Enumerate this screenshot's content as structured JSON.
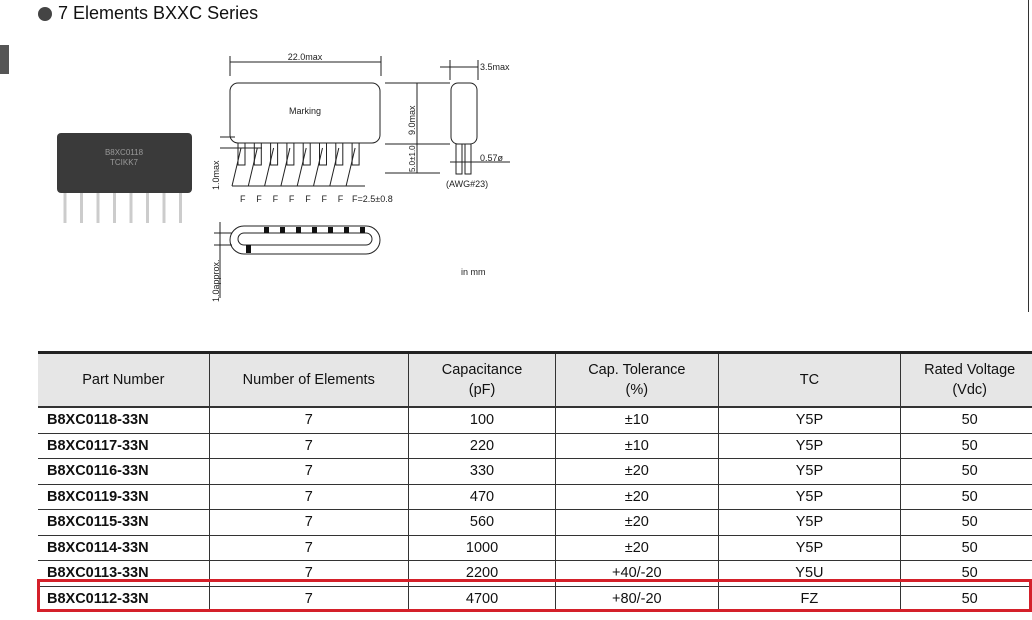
{
  "heading": "7 Elements BXXC Series",
  "diagram": {
    "width_label": "22.0max",
    "depth_label": "3.5max",
    "marking_label": "Marking",
    "height_label": "9.0max",
    "lead_length_label": "5.0±1.0",
    "lead_diameter_label": "0.57ø",
    "awg_label": "(AWG#23)",
    "lead_offset_label": "1.0max",
    "pitch_letter": "F",
    "pitch_label": "F=2.5±0.8",
    "bottom_label": "1.0approx.",
    "unit_label": "in mm",
    "photo_marking": [
      "B8XC0118",
      "TCIKK7"
    ]
  },
  "table": {
    "headers": [
      [
        "Part Number",
        ""
      ],
      [
        "Number of Elements",
        ""
      ],
      [
        "Capacitance",
        "(pF)"
      ],
      [
        "Cap. Tolerance",
        "(%)"
      ],
      [
        "TC",
        ""
      ],
      [
        "Rated Voltage",
        "(Vdc)"
      ]
    ],
    "rows": [
      [
        "B8XC0118-33N",
        "7",
        "100",
        "±10",
        "Y5P",
        "50"
      ],
      [
        "B8XC0117-33N",
        "7",
        "220",
        "±10",
        "Y5P",
        "50"
      ],
      [
        "B8XC0116-33N",
        "7",
        "330",
        "±20",
        "Y5P",
        "50"
      ],
      [
        "B8XC0119-33N",
        "7",
        "470",
        "±20",
        "Y5P",
        "50"
      ],
      [
        "B8XC0115-33N",
        "7",
        "560",
        "±20",
        "Y5P",
        "50"
      ],
      [
        "B8XC0114-33N",
        "7",
        "1000",
        "±20",
        "Y5P",
        "50"
      ],
      [
        "B8XC0113-33N",
        "7",
        "2200",
        "+40/-20",
        "Y5U",
        "50"
      ],
      [
        "B8XC0112-33N",
        "7",
        "4700",
        "+80/-20",
        "FZ",
        "50"
      ]
    ],
    "highlighted_row": 7,
    "highlight_color": "#d4202a"
  }
}
